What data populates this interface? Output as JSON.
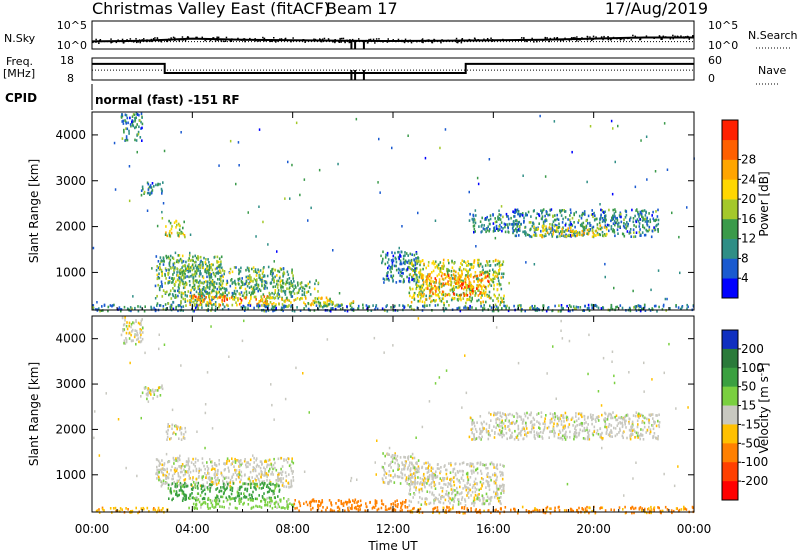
{
  "header": {
    "station": "Christmas Valley East (fitACF)",
    "beam": "Beam 17",
    "date": "17/Aug/2019"
  },
  "strip_labels": {
    "nsky": "N.Sky",
    "nsearch": "N.Search",
    "freq_line1": "Freq.",
    "freq_line2": "[MHz]",
    "nave": "Nave",
    "cpid": "CPID",
    "cpid_value": "normal (fast) -151 RF"
  },
  "colors": {
    "power_scale": [
      "#0000ff",
      "#1a5ad0",
      "#2f8e86",
      "#3a9a4a",
      "#a4c82a",
      "#ffd700",
      "#ffa500",
      "#ff6000",
      "#ff2000"
    ],
    "velocity_scale": [
      "#1030c0",
      "#2a7a3a",
      "#3aa040",
      "#7ad040",
      "#c8c8c0",
      "#ffc000",
      "#ff8000",
      "#ff4000",
      "#ff0000"
    ]
  },
  "chart_data": [
    {
      "type": "line",
      "name": "noise-panel",
      "x_unit": "hours UT",
      "xlim": [
        0,
        24
      ],
      "left_axis": {
        "label": "N.Sky",
        "ticks": [
          "10^5",
          "10^0"
        ]
      },
      "right_axis": {
        "label": "N.Search",
        "ticks": [
          "10^5",
          "10^0"
        ]
      },
      "series": [
        {
          "name": "N.Sky",
          "x": [
            0,
            2,
            3,
            4,
            6,
            8,
            10,
            12,
            14,
            16,
            18,
            20,
            22,
            24
          ],
          "values": [
            1.5,
            2,
            3,
            4,
            3,
            2.5,
            2,
            1.8,
            2,
            2.5,
            3,
            4,
            5,
            5
          ]
        }
      ]
    },
    {
      "type": "line",
      "name": "frequency-panel",
      "xlim": [
        0,
        24
      ],
      "left_axis": {
        "label": "Freq. [MHz]",
        "ticks": [
          "18",
          "8"
        ],
        "ylim": [
          8,
          18
        ]
      },
      "right_axis": {
        "label": "Nave",
        "ticks": [
          "60",
          "0"
        ],
        "ylim": [
          0,
          60
        ]
      },
      "series": [
        {
          "name": "Freq.",
          "x": [
            0,
            2.9,
            2.9,
            14.9,
            14.9,
            24
          ],
          "values": [
            15.3,
            15.3,
            11.2,
            11.2,
            15.3,
            15.3
          ]
        },
        {
          "name": "Nave",
          "x": [
            0,
            24
          ],
          "values": [
            27,
            27
          ]
        }
      ],
      "gaps_ut": [
        10.3,
        10.45,
        10.8
      ]
    },
    {
      "type": "heatmap",
      "name": "power-panel",
      "xlim": [
        0,
        24
      ],
      "ylim": [
        180,
        4500
      ],
      "ylabel": "Slant Range [km]",
      "y_ticks": [
        1000,
        2000,
        3000,
        4000
      ],
      "colorbar": {
        "label": "Power [dB]",
        "range": [
          0,
          32
        ],
        "ticks": [
          4,
          8,
          12,
          16,
          20,
          24,
          28
        ]
      },
      "regions": [
        {
          "t0": 1.1,
          "t1": 2.0,
          "r0": 3900,
          "r1": 4500,
          "v": 10
        },
        {
          "t0": 1.9,
          "t1": 2.8,
          "r0": 2700,
          "r1": 3000,
          "v": 10
        },
        {
          "t0": 2.9,
          "t1": 3.7,
          "r0": 1800,
          "r1": 2150,
          "v": 20
        },
        {
          "t0": 2.5,
          "t1": 5.2,
          "r0": 300,
          "r1": 1400,
          "v": 14
        },
        {
          "t0": 3.0,
          "t1": 8.0,
          "r0": 750,
          "r1": 1150,
          "v": 14
        },
        {
          "t0": 4.2,
          "t1": 9.0,
          "r0": 450,
          "r1": 850,
          "v": 14
        },
        {
          "t0": 3.8,
          "t1": 7.0,
          "r0": 300,
          "r1": 520,
          "v": 26
        },
        {
          "t0": 6.5,
          "t1": 9.5,
          "r0": 320,
          "r1": 480,
          "v": 22
        },
        {
          "t0": 8.5,
          "t1": 10.4,
          "r0": 280,
          "r1": 400,
          "v": 18
        },
        {
          "t0": 11.5,
          "t1": 13.0,
          "r0": 800,
          "r1": 1500,
          "v": 8
        },
        {
          "t0": 12.6,
          "t1": 16.4,
          "r0": 350,
          "r1": 1300,
          "v": 18
        },
        {
          "t0": 13.1,
          "t1": 15.8,
          "r0": 500,
          "r1": 1000,
          "v": 26
        },
        {
          "t0": 15.0,
          "t1": 17.3,
          "r0": 1900,
          "r1": 2300,
          "v": 10
        },
        {
          "t0": 16.7,
          "t1": 22.6,
          "r0": 1800,
          "r1": 2400,
          "v": 10
        },
        {
          "t0": 17.5,
          "t1": 20.5,
          "r0": 1800,
          "r1": 2050,
          "v": 20
        },
        {
          "t0": 0.0,
          "t1": 24.0,
          "r0": 180,
          "r1": 320,
          "v": 10
        }
      ]
    },
    {
      "type": "heatmap",
      "name": "velocity-panel",
      "xlim": [
        0,
        24
      ],
      "ylim": [
        180,
        4500
      ],
      "ylabel": "Slant Range [km]",
      "xlabel": "Time UT",
      "x_ticks": [
        "00:00",
        "04:00",
        "08:00",
        "12:00",
        "16:00",
        "20:00",
        "00:00"
      ],
      "y_ticks": [
        1000,
        2000,
        3000,
        4000
      ],
      "colorbar": {
        "label": "Velocity [m s^-1]",
        "ticks": [
          200,
          100,
          50,
          15,
          -15,
          -50,
          -100,
          -200
        ]
      },
      "regions": [
        {
          "t0": 1.1,
          "t1": 2.0,
          "r0": 3900,
          "r1": 4500,
          "v": 0
        },
        {
          "t0": 1.9,
          "t1": 2.8,
          "r0": 2700,
          "r1": 3000,
          "v": 0
        },
        {
          "t0": 2.9,
          "t1": 3.7,
          "r0": 1800,
          "r1": 2150,
          "v": 0
        },
        {
          "t0": 2.5,
          "t1": 8.0,
          "r0": 750,
          "r1": 1400,
          "v": 0
        },
        {
          "t0": 3.0,
          "t1": 7.5,
          "r0": 450,
          "r1": 850,
          "v": 60
        },
        {
          "t0": 3.8,
          "t1": 8.0,
          "r0": 280,
          "r1": 520,
          "v": 30
        },
        {
          "t0": 8.0,
          "t1": 12.5,
          "r0": 220,
          "r1": 480,
          "v": -80
        },
        {
          "t0": 11.5,
          "t1": 13.0,
          "r0": 800,
          "r1": 1500,
          "v": 0
        },
        {
          "t0": 12.6,
          "t1": 16.4,
          "r0": 350,
          "r1": 1300,
          "v": 0
        },
        {
          "t0": 15.0,
          "t1": 22.6,
          "r0": 1800,
          "r1": 2400,
          "v": 0
        },
        {
          "t0": 12.5,
          "t1": 24.0,
          "r0": 180,
          "r1": 320,
          "v": -60
        },
        {
          "t0": 0.0,
          "t1": 3.0,
          "r0": 180,
          "r1": 300,
          "v": -40
        }
      ]
    }
  ]
}
